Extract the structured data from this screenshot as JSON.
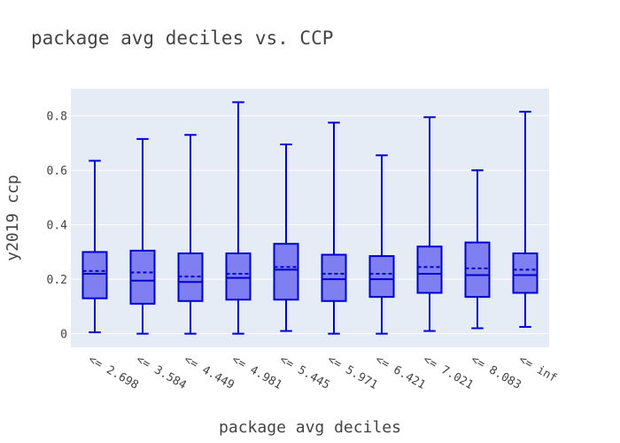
{
  "chart_data": {
    "type": "box",
    "title": "package avg deciles vs. CCP",
    "xlabel": "package avg deciles",
    "ylabel": "y2019 ccp",
    "ylim": [
      -0.05,
      0.9
    ],
    "yticks": [
      0,
      0.2,
      0.4,
      0.6,
      0.8
    ],
    "ytick_labels": [
      "0",
      "0.2",
      "0.4",
      "0.6",
      "0.8"
    ],
    "grid": true,
    "legend": "none",
    "colors": {
      "plot_bg": "#e5ecf6",
      "grid": "#ffffff",
      "box_fill": "#7f7ff2",
      "box_line": "#0000cc",
      "text": "#444444"
    },
    "categories": [
      "<= 2.698",
      "<= 3.584",
      "<= 4.449",
      "<= 4.981",
      "<= 5.445",
      "<= 5.971",
      "<= 6.421",
      "<= 7.021",
      "<= 8.083",
      "<= inf"
    ],
    "boxes": [
      {
        "min": 0.005,
        "q1": 0.13,
        "median": 0.22,
        "mean": 0.23,
        "q3": 0.3,
        "max": 0.635
      },
      {
        "min": 0.0,
        "q1": 0.11,
        "median": 0.195,
        "mean": 0.225,
        "q3": 0.305,
        "max": 0.715
      },
      {
        "min": 0.0,
        "q1": 0.12,
        "median": 0.19,
        "mean": 0.21,
        "q3": 0.295,
        "max": 0.73
      },
      {
        "min": 0.0,
        "q1": 0.125,
        "median": 0.205,
        "mean": 0.22,
        "q3": 0.295,
        "max": 0.85
      },
      {
        "min": 0.01,
        "q1": 0.125,
        "median": 0.235,
        "mean": 0.245,
        "q3": 0.33,
        "max": 0.695
      },
      {
        "min": 0.0,
        "q1": 0.12,
        "median": 0.2,
        "mean": 0.22,
        "q3": 0.29,
        "max": 0.775
      },
      {
        "min": 0.0,
        "q1": 0.135,
        "median": 0.2,
        "mean": 0.22,
        "q3": 0.285,
        "max": 0.655
      },
      {
        "min": 0.01,
        "q1": 0.15,
        "median": 0.22,
        "mean": 0.245,
        "q3": 0.32,
        "max": 0.795
      },
      {
        "min": 0.02,
        "q1": 0.135,
        "median": 0.215,
        "mean": 0.24,
        "q3": 0.335,
        "max": 0.6
      },
      {
        "min": 0.025,
        "q1": 0.15,
        "median": 0.215,
        "mean": 0.235,
        "q3": 0.295,
        "max": 0.815
      }
    ]
  }
}
